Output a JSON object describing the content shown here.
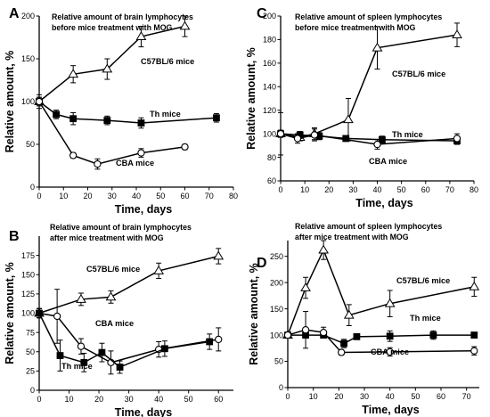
{
  "chart_data": [
    {
      "panel": "A",
      "type": "line",
      "title": [
        "Relative  amount of brain lymphocytes",
        "before mice treatment with MOG"
      ],
      "xlabel": "Time, days",
      "ylabel": "Relative amount, %",
      "xlim": [
        0,
        80
      ],
      "ylim": [
        0,
        200
      ],
      "xticks": [
        0,
        10,
        20,
        30,
        40,
        50,
        60,
        70,
        80
      ],
      "yticks": [
        0,
        50,
        100,
        150,
        200
      ],
      "series": [
        {
          "name": "C57BL/6 mice",
          "marker": "triangle",
          "x": [
            0,
            14,
            28,
            42,
            60
          ],
          "y": [
            100,
            132,
            138,
            176,
            188
          ],
          "err": [
            8,
            10,
            12,
            12,
            12
          ]
        },
        {
          "name": "Th mice",
          "marker": "square",
          "x": [
            0,
            7,
            14,
            28,
            42,
            73
          ],
          "y": [
            100,
            85,
            80,
            78,
            75,
            81
          ],
          "err": [
            5,
            5,
            7,
            5,
            6,
            5
          ]
        },
        {
          "name": "CBA mice",
          "marker": "circle",
          "x": [
            0,
            14,
            24,
            42,
            60
          ],
          "y": [
            100,
            37,
            27,
            40,
            47
          ],
          "err": [
            5,
            3,
            6,
            5,
            3
          ]
        }
      ]
    },
    {
      "panel": "B",
      "type": "line",
      "title": [
        "Relative  amount of brain lymphocytes",
        "after mice treatment with MOG"
      ],
      "xlabel": "Time, days",
      "ylabel": "Relative amount, %",
      "xlim": [
        0,
        65
      ],
      "ylim": [
        0,
        200
      ],
      "xticks": [
        0,
        10,
        20,
        30,
        40,
        50,
        60
      ],
      "yticks": [
        0,
        25,
        50,
        75,
        100,
        125,
        150,
        175
      ],
      "series": [
        {
          "name": "C57BL/6 mice",
          "marker": "triangle",
          "x": [
            0,
            14,
            24,
            40,
            60
          ],
          "y": [
            100,
            118,
            121,
            155,
            174
          ],
          "err": [
            6,
            8,
            8,
            10,
            10
          ]
        },
        {
          "name": "CBA mice",
          "marker": "circle",
          "x": [
            0,
            6,
            14,
            24,
            40,
            60
          ],
          "y": [
            100,
            96,
            57,
            36,
            53,
            66
          ],
          "err": [
            6,
            35,
            10,
            15,
            10,
            15
          ]
        },
        {
          "name": "Th mice",
          "marker": "square",
          "x": [
            0,
            7,
            15,
            21,
            27,
            42,
            57
          ],
          "y": [
            100,
            45,
            36,
            49,
            30,
            54,
            63
          ],
          "err": [
            6,
            20,
            12,
            12,
            8,
            10,
            10
          ]
        }
      ]
    },
    {
      "panel": "C",
      "type": "line",
      "title": [
        "Relative  amount of spleen lymphocytes",
        "before mice treatment with MOG"
      ],
      "xlabel": "Time, days",
      "ylabel": "Relative amount, %",
      "xlim": [
        0,
        80
      ],
      "ylim": [
        60,
        200
      ],
      "xticks": [
        0,
        10,
        20,
        30,
        40,
        50,
        60,
        70,
        80
      ],
      "yticks": [
        60,
        80,
        100,
        120,
        140,
        160,
        180,
        200
      ],
      "series": [
        {
          "name": "C57BL/6 mice",
          "marker": "triangle",
          "x": [
            0,
            8,
            14,
            28,
            40,
            73
          ],
          "y": [
            100,
            97,
            100,
            112,
            173,
            184
          ],
          "err": [
            3,
            3,
            5,
            18,
            18,
            10
          ]
        },
        {
          "name": "Th mice",
          "marker": "square",
          "x": [
            0,
            8,
            16,
            27,
            42,
            73
          ],
          "y": [
            100,
            99,
            98,
            96,
            95,
            94
          ],
          "err": [
            3,
            3,
            3,
            2,
            3,
            3
          ]
        },
        {
          "name": "CBA mice",
          "marker": "circle",
          "x": [
            0,
            7,
            14,
            40,
            73
          ],
          "y": [
            100,
            96,
            99,
            91,
            96
          ],
          "err": [
            18,
            4,
            5,
            4,
            4
          ]
        }
      ]
    },
    {
      "panel": "D",
      "type": "line",
      "title": [
        "Relative  amount of spleen lymphocytes",
        "after mice treatment with MOG"
      ],
      "xlabel": "Time, days",
      "ylabel": "Relative amount, %",
      "xlim": [
        0,
        75
      ],
      "ylim": [
        0,
        280
      ],
      "xticks": [
        0,
        10,
        20,
        30,
        40,
        50,
        60,
        70
      ],
      "yticks": [
        0,
        50,
        100,
        150,
        200,
        250
      ],
      "series": [
        {
          "name": "C57BL/6 mice",
          "marker": "triangle",
          "x": [
            0,
            7,
            14,
            24,
            40,
            73
          ],
          "y": [
            100,
            190,
            262,
            138,
            160,
            192
          ],
          "err": [
            5,
            20,
            18,
            20,
            25,
            18
          ]
        },
        {
          "name": "Th mice",
          "marker": "square",
          "x": [
            0,
            7,
            14,
            22,
            27,
            40,
            57,
            73
          ],
          "y": [
            100,
            100,
            100,
            84,
            97,
            98,
            100,
            100
          ],
          "err": [
            3,
            3,
            3,
            8,
            3,
            10,
            8,
            3
          ]
        },
        {
          "name": "CBA mice",
          "marker": "circle",
          "x": [
            0,
            7,
            14,
            21,
            40,
            73
          ],
          "y": [
            100,
            110,
            105,
            67,
            68,
            70
          ],
          "err": [
            5,
            35,
            10,
            5,
            8,
            8
          ]
        }
      ]
    }
  ]
}
